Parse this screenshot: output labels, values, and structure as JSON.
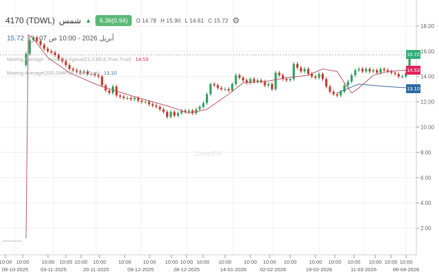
{
  "header": {
    "symbol": "4170 (TDWL)",
    "name": "شمس",
    "direction_icon": "triangle-up",
    "change": "6.36(0.94)",
    "open": "O 14.78",
    "high": "H 15.90",
    "low": "L 14.61",
    "close": "C 15.72",
    "settings_icon": "gear-icon"
  },
  "crosshair": {
    "price": "15.72",
    "datetime": "07 أبريل 2026 - 10:00 ص"
  },
  "legend": [
    {
      "label": "Moving Average - Arnaud Legoux(21,0.85,6,True,True)",
      "value": "14.53"
    },
    {
      "label": "Moving Average(200,SIMPLE,True,True)",
      "value": "13.10"
    }
  ],
  "watermark": "DirectFN",
  "price_tags": [
    {
      "value": "15.72",
      "color": "#2fae7a"
    },
    {
      "value": "14.53",
      "color": "#e0245e"
    },
    {
      "value": "13.10",
      "color": "#2c6aa6"
    }
  ],
  "colors": {
    "up": "#2f9e5b",
    "down": "#c0392b",
    "alma": "#b5566a",
    "sma": "#3a6a96"
  },
  "chart_data": {
    "type": "candlestick",
    "y_ticks": [
      "2.00",
      "4.00",
      "6.00",
      "8.00",
      "10.00",
      "12.00",
      "14.00",
      "16.00",
      "18.00"
    ],
    "ylim": [
      0,
      19
    ],
    "x_time_labels": [
      "10:00",
      "10:00",
      "10:00",
      "10:00",
      "10:00",
      "10:00",
      "10:00",
      "10:00",
      "10:00",
      "10:00",
      "10:00",
      "10:00",
      "10:00",
      "10:00",
      "10:00",
      "10:00",
      "10:00",
      "10:00",
      "10:00",
      "10:00",
      "10:00"
    ],
    "x_date_labels": [
      "09-10-2025",
      "03-11-2025",
      "20-11-2025",
      "09-12-2025",
      "28-12-2025",
      "14-01-2026",
      "02-02-2026",
      "19-02-2026",
      "11-03-2026",
      "06-04-2026"
    ],
    "closes": [
      15.8,
      16.9,
      17.1,
      16.8,
      16.5,
      16.2,
      16.0,
      15.9,
      15.7,
      15.4,
      15.2,
      14.9,
      14.6,
      14.5,
      14.4,
      14.3,
      14.4,
      14.2,
      14.2,
      14.1,
      14.0,
      13.3,
      12.9,
      12.7,
      13.2,
      12.5,
      12.4,
      12.3,
      12.3,
      12.2,
      12.3,
      12.1,
      12.0,
      12.0,
      11.8,
      11.7,
      11.6,
      11.4,
      11.2,
      10.8,
      11.2,
      10.9,
      11.1,
      11.3,
      11.2,
      11.3,
      11.1,
      11.4,
      11.6,
      11.9,
      12.6,
      13.4,
      13.3,
      13.1,
      13.0,
      13.0,
      12.9,
      13.4,
      14.1,
      13.9,
      13.7,
      13.5,
      13.8,
      13.6,
      13.7,
      13.6,
      13.3,
      13.4,
      13.0,
      14.3,
      14.1,
      13.8,
      13.7,
      13.8,
      15.0,
      14.7,
      14.4,
      14.6,
      14.2,
      14.0,
      13.9,
      14.2,
      13.8,
      13.2,
      12.8,
      12.6,
      12.5,
      12.8,
      13.3,
      13.6,
      14.1,
      14.5,
      14.6,
      14.4,
      14.6,
      14.4,
      14.5,
      14.3,
      14.6,
      14.5,
      14.4,
      14.3,
      14.2,
      14.0,
      14.0,
      14.3,
      15.72
    ],
    "series": [
      {
        "name": "Moving Average - Arnaud Legoux(21,0.85,6,True,True)",
        "points": [
          [
            0,
            1.2
          ],
          [
            0.6,
            17.3
          ],
          [
            2,
            17.0
          ],
          [
            6,
            15.5
          ],
          [
            12,
            14.3
          ],
          [
            20,
            13.3
          ],
          [
            30,
            12.4
          ],
          [
            40,
            11.6
          ],
          [
            45,
            11.1
          ],
          [
            50,
            11.4
          ],
          [
            56,
            12.6
          ],
          [
            60,
            13.5
          ],
          [
            66,
            13.6
          ],
          [
            72,
            13.9
          ],
          [
            78,
            14.1
          ],
          [
            82,
            14.6
          ],
          [
            86,
            14.4
          ],
          [
            88,
            13.5
          ],
          [
            90,
            12.7
          ],
          [
            92,
            13.1
          ],
          [
            96,
            14.1
          ],
          [
            100,
            14.4
          ],
          [
            106,
            14.53
          ]
        ]
      },
      {
        "name": "Moving Average(200,SIMPLE,True,True)",
        "points": [
          [
            86,
            12.7
          ],
          [
            92,
            13.4
          ],
          [
            100,
            13.2
          ],
          [
            106,
            13.1
          ]
        ]
      }
    ]
  }
}
